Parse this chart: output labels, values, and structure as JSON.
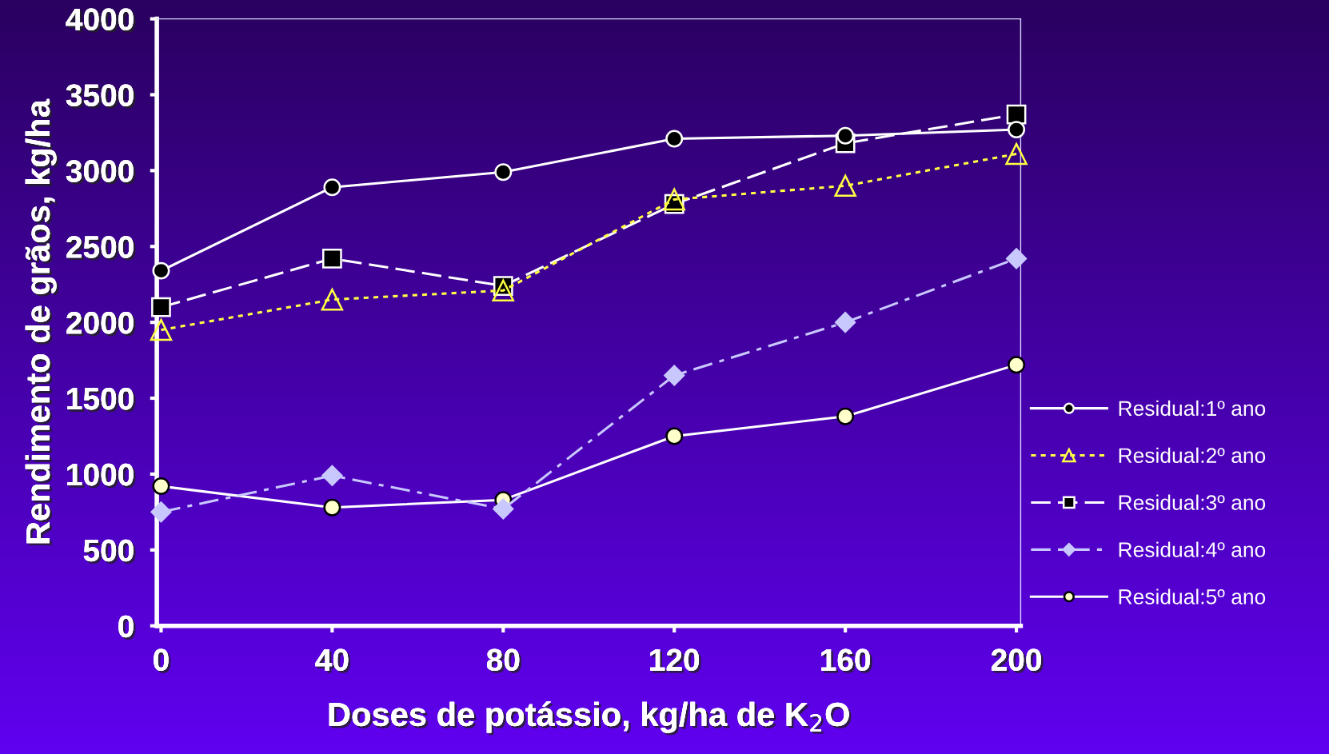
{
  "chart_data": {
    "type": "line",
    "xlabel": "Doses de potássio, kg/ha de K$_{2}$O",
    "ylabel": "Rendimento de grãos, kg/ha",
    "x": [
      0,
      40,
      80,
      120,
      160,
      200
    ],
    "xlim": [
      -1,
      201
    ],
    "xticks": [
      0,
      40,
      80,
      120,
      160,
      200
    ],
    "ylim": [
      0,
      4000
    ],
    "yticks": [
      0,
      500,
      1000,
      1500,
      2000,
      2500,
      3000,
      3500,
      4000
    ],
    "grid": false,
    "legend": "right",
    "series": [
      {
        "name": "Residual:1º ano",
        "color": "#ffffff",
        "marker": "circle",
        "line_style": "solid",
        "values": [
          2340,
          2890,
          2990,
          3210,
          3230,
          3270
        ]
      },
      {
        "name": "Residual:2º ano",
        "color": "#ffff44",
        "marker": "triangle",
        "line_style": "dotted",
        "values": [
          1950,
          2150,
          2210,
          2810,
          2900,
          3110
        ]
      },
      {
        "name": "Residual:3º ano",
        "color": "#ffffff",
        "marker": "square",
        "line_style": "dashed",
        "values": [
          2100,
          2420,
          2240,
          2780,
          3180,
          3370
        ]
      },
      {
        "name": "Residual:4º ano",
        "color": "#c8c8ff",
        "marker": "diamond",
        "line_style": "dashdot",
        "values": [
          750,
          990,
          770,
          1650,
          2000,
          2420
        ]
      },
      {
        "name": "Residual:5º ano",
        "color": "#ffffff",
        "marker": "circle",
        "line_style": "solid",
        "values": [
          920,
          780,
          830,
          1250,
          1380,
          1720
        ]
      }
    ]
  }
}
